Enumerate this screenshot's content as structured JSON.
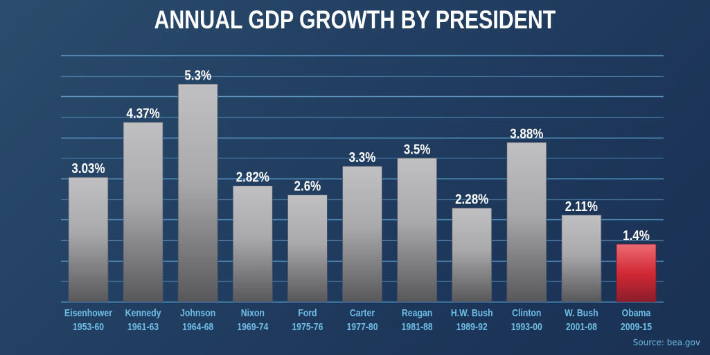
{
  "chart_data": {
    "type": "bar",
    "title": "ANNUAL GDP GROWTH BY PRESIDENT",
    "xlabel": "",
    "ylabel": "",
    "ylim": [
      0,
      6
    ],
    "grid": true,
    "grid_step": 0.5,
    "categories": [
      {
        "name": "Eisenhower",
        "years": "1953-60"
      },
      {
        "name": "Kennedy",
        "years": "1961-63"
      },
      {
        "name": "Johnson",
        "years": "1964-68"
      },
      {
        "name": "Nixon",
        "years": "1969-74"
      },
      {
        "name": "Ford",
        "years": "1975-76"
      },
      {
        "name": "Carter",
        "years": "1977-80"
      },
      {
        "name": "Reagan",
        "years": "1981-88"
      },
      {
        "name": "H.W. Bush",
        "years": "1989-92"
      },
      {
        "name": "Clinton",
        "years": "1993-00"
      },
      {
        "name": "W. Bush",
        "years": "2001-08"
      },
      {
        "name": "Obama",
        "years": "2009-15"
      }
    ],
    "values": [
      3.03,
      4.37,
      5.3,
      2.82,
      2.6,
      3.3,
      3.5,
      2.28,
      3.88,
      2.11,
      1.4
    ],
    "data_labels": [
      "3.03%",
      "4.37%",
      "5.3%",
      "2.82%",
      "2.6%",
      "3.3%",
      "3.5%",
      "2.28%",
      "3.88%",
      "2.11%",
      "1.4%"
    ],
    "highlight_index": 10,
    "colors": {
      "bar_top": "#c0c0c3",
      "bar_bottom": "#58585a",
      "highlight_top": "#ec6b72",
      "highlight_mid": "#d22a35",
      "highlight_bottom": "#8c1c2a",
      "gridline": "#5e9ccb",
      "category_text": "#6fbde6"
    },
    "source": "Source: bea.gov"
  }
}
